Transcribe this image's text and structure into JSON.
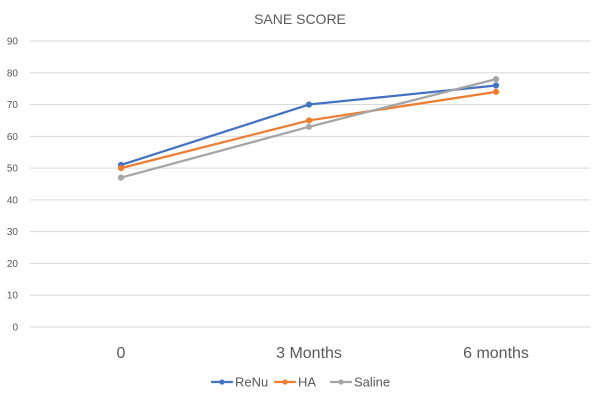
{
  "chart_data": {
    "type": "line",
    "title": "SANE SCORE",
    "xlabel": "",
    "ylabel": "",
    "categories": [
      "0",
      "3 Months",
      "6 months"
    ],
    "ylim": [
      0,
      90
    ],
    "yticks": [
      0,
      10,
      20,
      30,
      40,
      50,
      60,
      70,
      80,
      90
    ],
    "grid": true,
    "legend_position": "bottom",
    "series": [
      {
        "name": "ReNu",
        "values": [
          51,
          70,
          76
        ],
        "color": "#4472c4"
      },
      {
        "name": "HA",
        "values": [
          50,
          65,
          74
        ],
        "color": "#ed7d31"
      },
      {
        "name": "Saline",
        "values": [
          47,
          63,
          78
        ],
        "color": "#a5a5a5"
      }
    ]
  }
}
